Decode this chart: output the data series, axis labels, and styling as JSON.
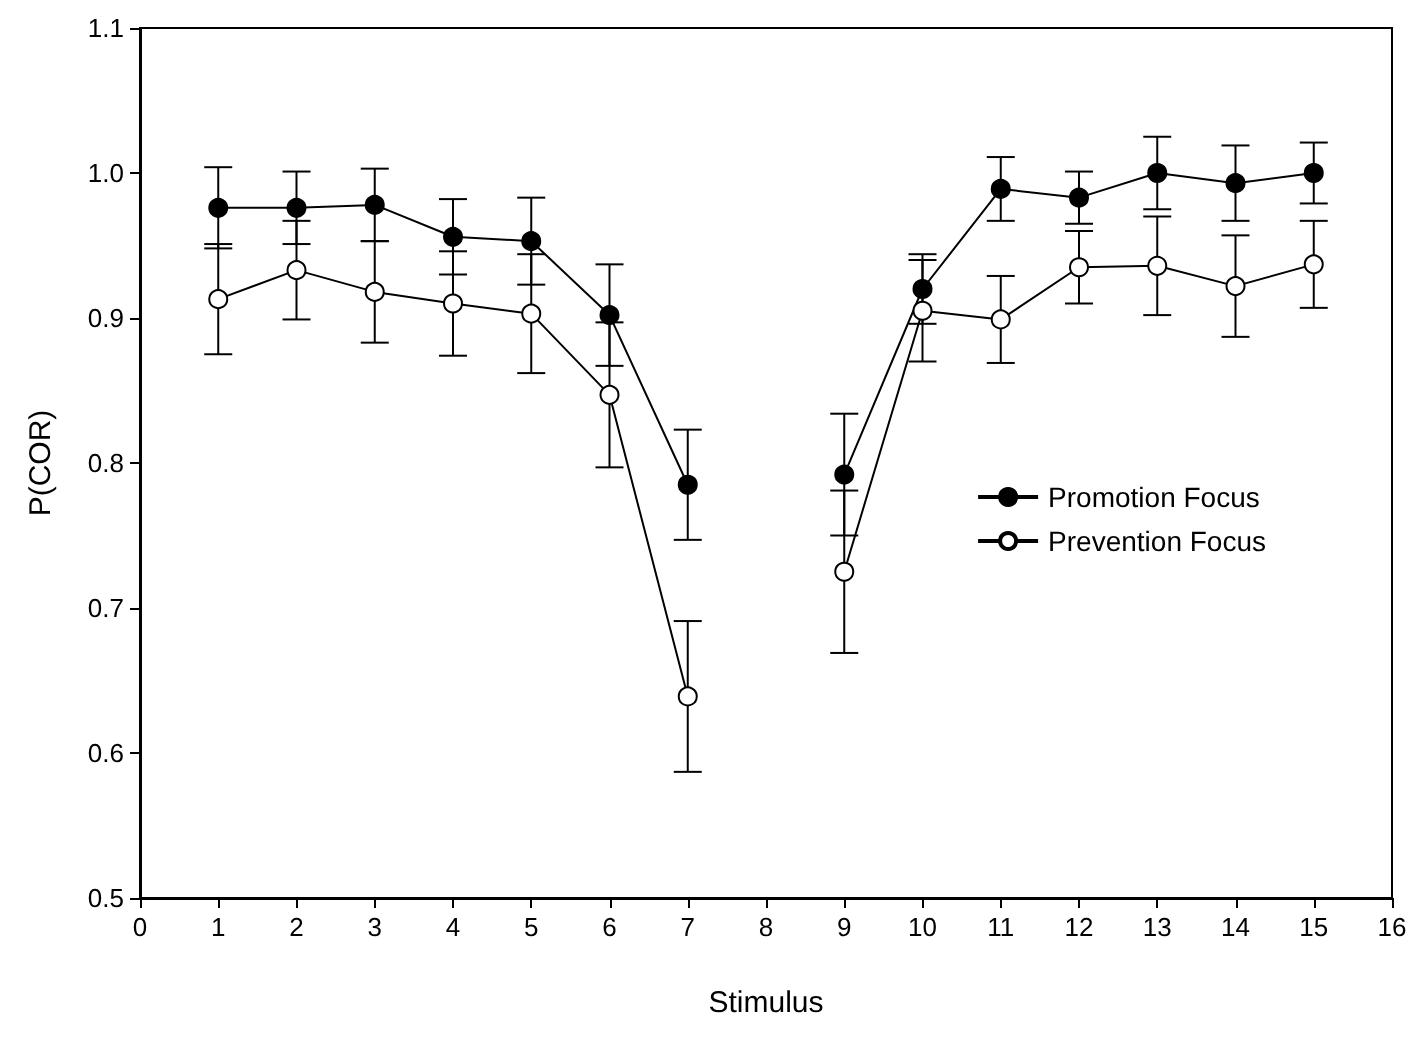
{
  "chart_data": {
    "type": "line",
    "xlabel": "Stimulus",
    "ylabel": "P(COR)",
    "x": [
      1,
      2,
      3,
      4,
      5,
      6,
      7,
      8,
      9,
      10,
      11,
      12,
      13,
      14,
      15
    ],
    "series": [
      {
        "name": "Promotion Focus",
        "color": "#000000",
        "values": [
          0.976,
          0.976,
          0.978,
          0.956,
          0.953,
          0.902,
          0.785,
          null,
          0.792,
          0.92,
          0.989,
          0.983,
          1.0,
          0.993,
          1.0
        ],
        "errors": [
          0.028,
          0.025,
          0.025,
          0.026,
          0.03,
          0.035,
          0.038,
          null,
          0.042,
          0.024,
          0.022,
          0.018,
          0.025,
          0.026,
          0.021
        ]
      },
      {
        "name": "Prevention Focus",
        "color": "#ffffff",
        "values": [
          0.913,
          0.933,
          0.918,
          0.91,
          0.903,
          0.847,
          0.639,
          null,
          0.725,
          0.905,
          0.899,
          0.935,
          0.936,
          0.922,
          0.937
        ],
        "errors": [
          0.038,
          0.034,
          0.035,
          0.036,
          0.041,
          0.05,
          0.052,
          null,
          0.056,
          0.035,
          0.03,
          0.025,
          0.034,
          0.035,
          0.03
        ]
      }
    ],
    "xlim": [
      0,
      16
    ],
    "xticks": [
      0,
      1,
      2,
      3,
      4,
      5,
      6,
      7,
      8,
      9,
      10,
      11,
      12,
      13,
      14,
      15,
      16
    ],
    "ylim": [
      0.5,
      1.1
    ],
    "yticks": [
      0.5,
      0.6,
      0.7,
      0.8,
      0.9,
      {
        "value": 1.0,
        "label": "1.0"
      },
      1.1
    ],
    "marker": "circle",
    "line_style": "solid",
    "grid": false,
    "legend": "right"
  }
}
